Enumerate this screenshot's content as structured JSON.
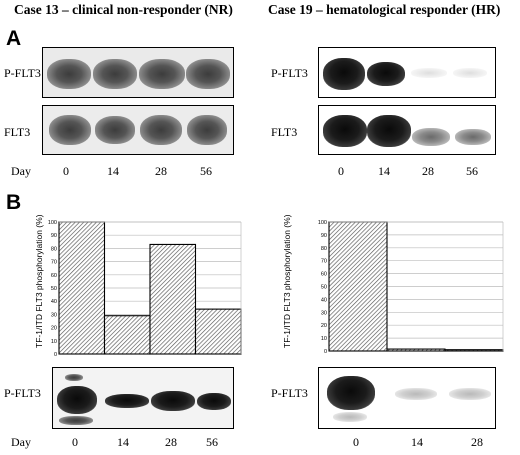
{
  "figure": {
    "panel_a_letter": "A",
    "panel_b_letter": "B",
    "left_case_title": "Case 13 – clinical non-responder (NR)",
    "right_case_title": "Case 19 – hematological responder (HR)",
    "blot_row_labels": {
      "pflt3": "P-FLT3",
      "flt3": "FLT3"
    },
    "day_label": "Day",
    "left_days": [
      "0",
      "14",
      "28",
      "56"
    ],
    "right_days_a": [
      "0",
      "14",
      "28",
      "56"
    ],
    "right_days_b": [
      "0",
      "14",
      "28"
    ],
    "chart_tick_labels": [
      "0",
      "10",
      "20",
      "30",
      "40",
      "50",
      "60",
      "70",
      "80",
      "90",
      "100"
    ]
  },
  "chart_data": [
    {
      "type": "bar",
      "categories": [
        "0",
        "14",
        "28",
        "56"
      ],
      "values": [
        100,
        29,
        83,
        34
      ],
      "title": "",
      "xlabel": "",
      "ylabel": "TF-1/ITD FLT3 phosphorylation (%)",
      "ylim": [
        0,
        100
      ],
      "grid": true,
      "fill": "hatched"
    },
    {
      "type": "bar",
      "categories": [
        "0",
        "14",
        "28"
      ],
      "values": [
        100,
        1.5,
        1
      ],
      "title": "",
      "xlabel": "",
      "ylabel": "TF-1/ITD FLT3 phosphorylation (%)",
      "ylim": [
        0,
        100
      ],
      "grid": true,
      "fill": "hatched"
    }
  ]
}
